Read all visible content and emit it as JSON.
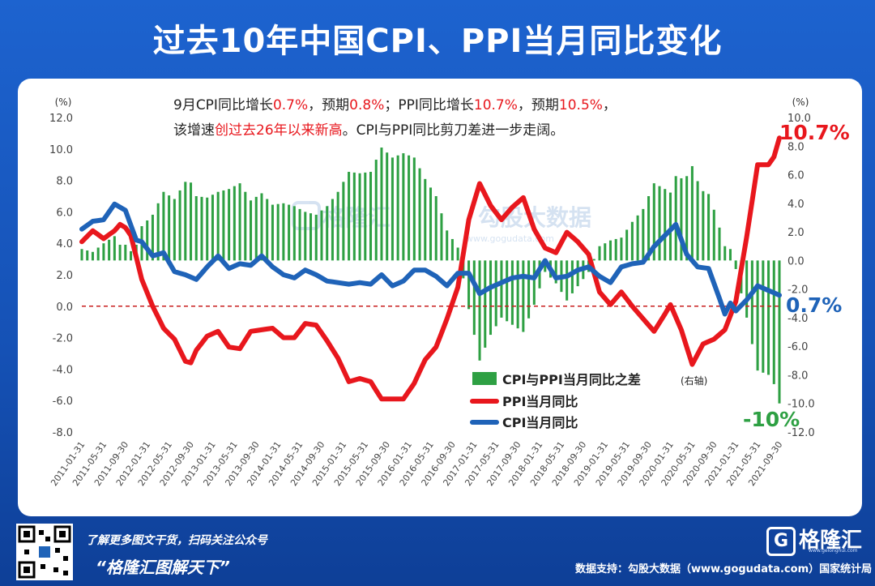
{
  "header": {
    "title": "过去10年中国CPI、PPI当月同比变化"
  },
  "subtitle": {
    "line1": [
      {
        "t": "9月CPI同比增长",
        "red": false
      },
      {
        "t": "0.7%",
        "red": true
      },
      {
        "t": "，预期",
        "red": false
      },
      {
        "t": "0.8%",
        "red": true
      },
      {
        "t": "；PPI同比增长",
        "red": false
      },
      {
        "t": "10.7%",
        "red": true
      },
      {
        "t": "，预期",
        "red": false
      },
      {
        "t": "10.5%",
        "red": true
      },
      {
        "t": "，",
        "red": false
      }
    ],
    "line2": [
      {
        "t": "该增速",
        "red": false
      },
      {
        "t": "创过去26年以来新高",
        "red": true
      },
      {
        "t": "。CPI与PPI同比剪刀差进一步走阔。",
        "red": false
      }
    ]
  },
  "watermark": {
    "name": "格隆汇",
    "data": "勾股大数据",
    "url": "www.gogudata.com"
  },
  "footer": {
    "promo": "了解更多图文干货，扫码关注公众号",
    "slogan": "“格隆汇图解天下”",
    "logo_char": "G",
    "logo_name": "格隆汇",
    "logo_url": "www.gelonghui.com",
    "source": "数据支持：勾股大数据（www.gogudata.com）国家统计局"
  },
  "colors": {
    "ppi": "#e8171d",
    "cpi": "#1f63b8",
    "diff": "#2ea043",
    "zero_line": "#c81e1e"
  },
  "chart_data": {
    "type": "line",
    "ylabel_left": "(%)",
    "ylabel_right": "(%)",
    "ylim_left": [
      -8.0,
      12.0
    ],
    "ylim_right": [
      -12.0,
      10.0
    ],
    "yticks_left": [
      "12.0",
      "10.0",
      "8.0",
      "6.0",
      "4.0",
      "2.0",
      "0.0",
      "-2.0",
      "-4.0",
      "-6.0",
      "-8.0"
    ],
    "yticks_right": [
      "10.0",
      "8.0",
      "6.0",
      "4.0",
      "2.0",
      "0.0",
      "-2.0",
      "-4.0",
      "-6.0",
      "-8.0",
      "-10.0",
      "-12.0"
    ],
    "x_tick_labels": [
      "2011-01-31",
      "2011-05-31",
      "2011-09-30",
      "2012-01-31",
      "2012-05-31",
      "2012-09-30",
      "2013-01-31",
      "2013-05-31",
      "2013-09-30",
      "2014-01-31",
      "2014-05-31",
      "2014-09-30",
      "2015-01-31",
      "2015-05-31",
      "2015-09-30",
      "2016-01-31",
      "2016-05-31",
      "2016-09-30",
      "2017-01-31",
      "2017-05-31",
      "2017-09-30",
      "2018-01-31",
      "2018-05-31",
      "2018-09-30",
      "2019-01-31",
      "2019-05-31",
      "2019-09-30",
      "2020-01-31",
      "2020-05-31",
      "2020-09-30",
      "2021-01-31",
      "2021-05-31",
      "2021-09-30"
    ],
    "start_month": "2011-01",
    "end_month": "2021-09",
    "legend": [
      "CPI与PPI当月同比之差",
      "(右轴)",
      "PPI当月同比",
      "CPI当月同比"
    ],
    "legend_position": "bottom-right",
    "annotations": {
      "ppi_last": "10.7%",
      "cpi_last": "0.7%",
      "diff_last": "-10%"
    },
    "ppi_anchors": [
      [
        "2011-01",
        4.1
      ],
      [
        "2011-03",
        4.8
      ],
      [
        "2011-05",
        4.3
      ],
      [
        "2011-07",
        4.8
      ],
      [
        "2011-08",
        5.2
      ],
      [
        "2011-09",
        5.0
      ],
      [
        "2011-10",
        4.5
      ],
      [
        "2011-12",
        1.7
      ],
      [
        "2012-02",
        0.0
      ],
      [
        "2012-04",
        -1.4
      ],
      [
        "2012-06",
        -2.1
      ],
      [
        "2012-08",
        -3.5
      ],
      [
        "2012-09",
        -3.6
      ],
      [
        "2012-10",
        -2.8
      ],
      [
        "2012-12",
        -1.9
      ],
      [
        "2013-02",
        -1.6
      ],
      [
        "2013-04",
        -2.6
      ],
      [
        "2013-06",
        -2.7
      ],
      [
        "2013-08",
        -1.6
      ],
      [
        "2013-10",
        -1.5
      ],
      [
        "2013-12",
        -1.4
      ],
      [
        "2014-02",
        -2.0
      ],
      [
        "2014-04",
        -2.0
      ],
      [
        "2014-06",
        -1.1
      ],
      [
        "2014-08",
        -1.2
      ],
      [
        "2014-10",
        -2.2
      ],
      [
        "2014-12",
        -3.3
      ],
      [
        "2015-02",
        -4.8
      ],
      [
        "2015-04",
        -4.6
      ],
      [
        "2015-06",
        -4.8
      ],
      [
        "2015-08",
        -5.9
      ],
      [
        "2015-10",
        -5.9
      ],
      [
        "2015-12",
        -5.9
      ],
      [
        "2016-02",
        -4.9
      ],
      [
        "2016-04",
        -3.4
      ],
      [
        "2016-06",
        -2.6
      ],
      [
        "2016-08",
        -0.8
      ],
      [
        "2016-10",
        1.2
      ],
      [
        "2016-12",
        5.5
      ],
      [
        "2017-02",
        7.8
      ],
      [
        "2017-04",
        6.4
      ],
      [
        "2017-06",
        5.5
      ],
      [
        "2017-08",
        6.3
      ],
      [
        "2017-10",
        6.9
      ],
      [
        "2017-12",
        4.9
      ],
      [
        "2018-02",
        3.7
      ],
      [
        "2018-04",
        3.4
      ],
      [
        "2018-06",
        4.7
      ],
      [
        "2018-08",
        4.1
      ],
      [
        "2018-10",
        3.3
      ],
      [
        "2018-12",
        0.9
      ],
      [
        "2019-02",
        0.1
      ],
      [
        "2019-04",
        0.9
      ],
      [
        "2019-06",
        0.0
      ],
      [
        "2019-08",
        -0.8
      ],
      [
        "2019-10",
        -1.6
      ],
      [
        "2019-12",
        -0.5
      ],
      [
        "2020-01",
        0.1
      ],
      [
        "2020-03",
        -1.5
      ],
      [
        "2020-05",
        -3.7
      ],
      [
        "2020-07",
        -2.4
      ],
      [
        "2020-09",
        -2.1
      ],
      [
        "2020-11",
        -1.5
      ],
      [
        "2021-01",
        0.3
      ],
      [
        "2021-03",
        4.4
      ],
      [
        "2021-05",
        9.0
      ],
      [
        "2021-07",
        9.0
      ],
      [
        "2021-08",
        9.5
      ],
      [
        "2021-09",
        10.7
      ]
    ],
    "cpi_anchors": [
      [
        "2011-01",
        4.9
      ],
      [
        "2011-03",
        5.4
      ],
      [
        "2011-05",
        5.5
      ],
      [
        "2011-07",
        6.5
      ],
      [
        "2011-09",
        6.1
      ],
      [
        "2011-11",
        4.2
      ],
      [
        "2011-12",
        4.1
      ],
      [
        "2012-02",
        3.2
      ],
      [
        "2012-04",
        3.4
      ],
      [
        "2012-06",
        2.2
      ],
      [
        "2012-08",
        2.0
      ],
      [
        "2012-10",
        1.7
      ],
      [
        "2012-12",
        2.5
      ],
      [
        "2013-02",
        3.2
      ],
      [
        "2013-04",
        2.4
      ],
      [
        "2013-06",
        2.7
      ],
      [
        "2013-08",
        2.6
      ],
      [
        "2013-10",
        3.2
      ],
      [
        "2013-12",
        2.5
      ],
      [
        "2014-02",
        2.0
      ],
      [
        "2014-04",
        1.8
      ],
      [
        "2014-06",
        2.3
      ],
      [
        "2014-08",
        2.0
      ],
      [
        "2014-10",
        1.6
      ],
      [
        "2014-12",
        1.5
      ],
      [
        "2015-02",
        1.4
      ],
      [
        "2015-04",
        1.5
      ],
      [
        "2015-06",
        1.4
      ],
      [
        "2015-08",
        2.0
      ],
      [
        "2015-10",
        1.3
      ],
      [
        "2015-12",
        1.6
      ],
      [
        "2016-02",
        2.3
      ],
      [
        "2016-04",
        2.3
      ],
      [
        "2016-06",
        1.9
      ],
      [
        "2016-08",
        1.3
      ],
      [
        "2016-10",
        2.1
      ],
      [
        "2016-12",
        2.1
      ],
      [
        "2017-02",
        0.8
      ],
      [
        "2017-04",
        1.2
      ],
      [
        "2017-06",
        1.5
      ],
      [
        "2017-08",
        1.8
      ],
      [
        "2017-10",
        1.9
      ],
      [
        "2017-12",
        1.8
      ],
      [
        "2018-02",
        2.9
      ],
      [
        "2018-04",
        1.8
      ],
      [
        "2018-06",
        1.9
      ],
      [
        "2018-08",
        2.3
      ],
      [
        "2018-10",
        2.5
      ],
      [
        "2018-12",
        1.9
      ],
      [
        "2019-02",
        1.5
      ],
      [
        "2019-04",
        2.5
      ],
      [
        "2019-06",
        2.7
      ],
      [
        "2019-08",
        2.8
      ],
      [
        "2019-10",
        3.8
      ],
      [
        "2019-12",
        4.5
      ],
      [
        "2020-02",
        5.2
      ],
      [
        "2020-04",
        3.3
      ],
      [
        "2020-06",
        2.5
      ],
      [
        "2020-08",
        2.4
      ],
      [
        "2020-10",
        0.5
      ],
      [
        "2020-11",
        -0.5
      ],
      [
        "2020-12",
        0.2
      ],
      [
        "2021-01",
        -0.3
      ],
      [
        "2021-03",
        0.4
      ],
      [
        "2021-05",
        1.3
      ],
      [
        "2021-07",
        1.0
      ],
      [
        "2021-09",
        0.7
      ]
    ]
  }
}
